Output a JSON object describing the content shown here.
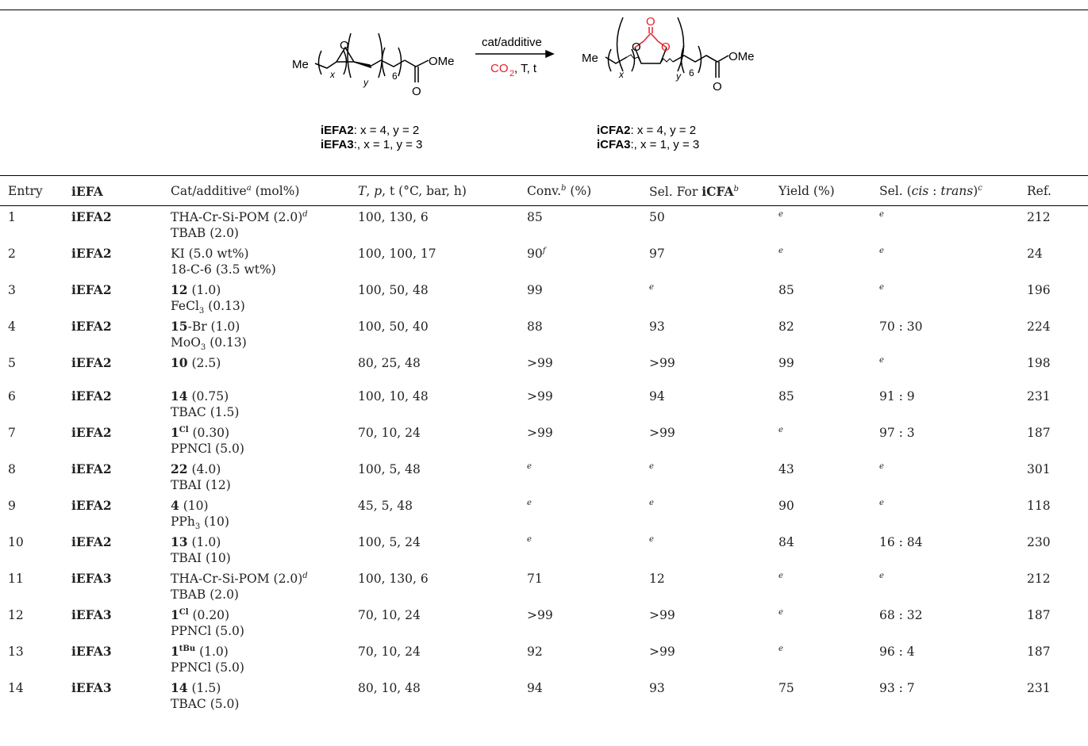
{
  "scheme": {
    "reactant": {
      "me": "Me",
      "ome": "OMe",
      "o_epox": "O",
      "o_carbonyl": "O",
      "sub_x": "x",
      "sub_y": "y",
      "sub_6": "6"
    },
    "product": {
      "me": "Me",
      "ome": "OMe",
      "o_ring1": "O",
      "o_ring2": "O",
      "o_top": "O",
      "o_carbonyl": "O",
      "sub_x": "x",
      "sub_y": "y",
      "sub_6": "6"
    },
    "arrow_top": "cat/additive",
    "arrow_bottom_co2": "CO",
    "arrow_bottom_sub": "2",
    "arrow_bottom_rest": ", T, t",
    "reactant_labels": [
      {
        "name": "iEFA2",
        "text": ": x = 4, y = 2"
      },
      {
        "name": "iEFA3",
        "text": ":, x = 1, y = 3"
      }
    ],
    "product_labels": [
      {
        "name": "iCFA2",
        "text": ": x = 4, y = 2"
      },
      {
        "name": "iCFA3",
        "text": ":, x = 1, y = 3"
      }
    ],
    "accent_color": "#e8202a"
  },
  "table": {
    "headers": {
      "entry": "Entry",
      "iefa": "iEFA",
      "cat": "Cat/additive",
      "cat_sup": "a",
      "cat_unit": " (mol%)",
      "cond_T": "T",
      "cond_p": "p",
      "cond_rest": ", t (°C, bar, h)",
      "conv": "Conv.",
      "conv_sup": "b",
      "conv_unit": " (%)",
      "sel": "Sel. For ",
      "sel_bold": "iCFA",
      "sel_sup": "b",
      "yield": "Yield (%)",
      "selct": "Sel. (",
      "selct_cis": "cis",
      "selct_colon": " : ",
      "selct_trans": "trans",
      "selct_close": ")",
      "selct_sup": "c",
      "ref": "Ref."
    },
    "rows": [
      {
        "entry": "1",
        "iefa": "iEFA2",
        "cat1_bold": "",
        "cat1": "THA-Cr-Si-POM (2.0)",
        "cat1_sup": "d",
        "cat2": "TBAB (2.0)",
        "cond": "100, 130, 6",
        "conv": "85",
        "conv_sup": "",
        "sel": "50",
        "sel_sup": "",
        "yield": "",
        "yield_sup": "e",
        "ct": "",
        "ct_sup": "e",
        "ref": "212"
      },
      {
        "entry": "2",
        "iefa": "iEFA2",
        "cat1_bold": "",
        "cat1": "KI (5.0 wt%)",
        "cat1_sup": "",
        "cat2": "18-C-6 (3.5 wt%)",
        "cond": "100, 100, 17",
        "conv": "90",
        "conv_sup": "f",
        "sel": "97",
        "sel_sup": "",
        "yield": "",
        "yield_sup": "e",
        "ct": "",
        "ct_sup": "e",
        "ref": "24"
      },
      {
        "entry": "3",
        "iefa": "iEFA2",
        "cat1_bold": "12",
        "cat1": " (1.0)",
        "cat1_sup": "",
        "cat2": "FeCl",
        "cat2_sub": "3",
        "cat2_tail": " (0.13)",
        "cond": "100, 50, 48",
        "conv": "99",
        "conv_sup": "",
        "sel": "",
        "sel_sup": "e",
        "yield": "85",
        "yield_sup": "",
        "ct": "",
        "ct_sup": "e",
        "ref": "196"
      },
      {
        "entry": "4",
        "iefa": "iEFA2",
        "cat1_bold": "15",
        "cat1": "-Br (1.0)",
        "cat1_sup": "",
        "cat2": "MoO",
        "cat2_sub": "3",
        "cat2_tail": " (0.13)",
        "cond": "100, 50, 40",
        "conv": "88",
        "conv_sup": "",
        "sel": "93",
        "sel_sup": "",
        "yield": "82",
        "yield_sup": "",
        "ct": "70 : 30",
        "ct_sup": "",
        "ref": "224"
      },
      {
        "entry": "5",
        "iefa": "iEFA2",
        "cat1_bold": "10",
        "cat1": " (2.5)",
        "cat1_sup": "",
        "cat2": "",
        "cond": "80, 25, 48",
        "conv": ">99",
        "conv_sup": "",
        "sel": ">99",
        "sel_sup": "",
        "yield": "99",
        "yield_sup": "",
        "ct": "",
        "ct_sup": "e",
        "ref": "198"
      },
      {
        "entry": "6",
        "iefa": "iEFA2",
        "cat1_bold": "14",
        "cat1": " (0.75)",
        "cat1_sup": "",
        "cat2": "TBAC (1.5)",
        "cond": "100, 10, 48",
        "conv": ">99",
        "conv_sup": "",
        "sel": "94",
        "sel_sup": "",
        "yield": "85",
        "yield_sup": "",
        "ct": "91 : 9",
        "ct_sup": "",
        "ref": "231"
      },
      {
        "entry": "7",
        "iefa": "iEFA2",
        "cat1_bold": "1",
        "cat1_boldsup": "Cl",
        "cat1": " (0.30)",
        "cat1_sup": "",
        "cat2": "PPNCl (5.0)",
        "cond": "70, 10, 24",
        "conv": ">99",
        "conv_sup": "",
        "sel": ">99",
        "sel_sup": "",
        "yield": "",
        "yield_sup": "e",
        "ct": "97 : 3",
        "ct_sup": "",
        "ref": "187"
      },
      {
        "entry": "8",
        "iefa": "iEFA2",
        "cat1_bold": "22",
        "cat1": " (4.0)",
        "cat1_sup": "",
        "cat2": "TBAI (12)",
        "cond": "100, 5, 48",
        "conv": "",
        "conv_sup": "e",
        "sel": "",
        "sel_sup": "e",
        "yield": "43",
        "yield_sup": "",
        "ct": "",
        "ct_sup": "e",
        "ref": "301"
      },
      {
        "entry": "9",
        "iefa": "iEFA2",
        "cat1_bold": "4",
        "cat1": " (10)",
        "cat1_sup": "",
        "cat2": "PPh",
        "cat2_sub": "3",
        "cat2_tail": " (10)",
        "cond": "45, 5, 48",
        "conv": "",
        "conv_sup": "e",
        "sel": "",
        "sel_sup": "e",
        "yield": "90",
        "yield_sup": "",
        "ct": "",
        "ct_sup": "e",
        "ref": "118"
      },
      {
        "entry": "10",
        "iefa": "iEFA2",
        "cat1_bold": "13",
        "cat1": " (1.0)",
        "cat1_sup": "",
        "cat2": "TBAI (10)",
        "cond": "100, 5, 24",
        "conv": "",
        "conv_sup": "e",
        "sel": "",
        "sel_sup": "e",
        "yield": "84",
        "yield_sup": "",
        "ct": "16 : 84",
        "ct_sup": "",
        "ref": "230"
      },
      {
        "entry": "11",
        "iefa": "iEFA3",
        "cat1_bold": "",
        "cat1": "THA-Cr-Si-POM (2.0)",
        "cat1_sup": "d",
        "cat2": "TBAB (2.0)",
        "cond": "100, 130, 6",
        "conv": "71",
        "conv_sup": "",
        "sel": "12",
        "sel_sup": "",
        "yield": "",
        "yield_sup": "e",
        "ct": "",
        "ct_sup": "e",
        "ref": "212"
      },
      {
        "entry": "12",
        "iefa": "iEFA3",
        "cat1_bold": "1",
        "cat1_boldsup": "Cl",
        "cat1": " (0.20)",
        "cat1_sup": "",
        "cat2": "PPNCl (5.0)",
        "cond": "70, 10, 24",
        "conv": ">99",
        "conv_sup": "",
        "sel": ">99",
        "sel_sup": "",
        "yield": "",
        "yield_sup": "e",
        "ct": "68 : 32",
        "ct_sup": "",
        "ref": "187"
      },
      {
        "entry": "13",
        "iefa": "iEFA3",
        "cat1_bold": "1",
        "cat1_boldsup": "tBu",
        "cat1": " (1.0)",
        "cat1_sup": "",
        "cat2": "PPNCl (5.0)",
        "cond": "70, 10, 24",
        "conv": "92",
        "conv_sup": "",
        "sel": ">99",
        "sel_sup": "",
        "yield": "",
        "yield_sup": "e",
        "ct": "96 : 4",
        "ct_sup": "",
        "ref": "187"
      },
      {
        "entry": "14",
        "iefa": "iEFA3",
        "cat1_bold": "14",
        "cat1": " (1.5)",
        "cat1_sup": "",
        "cat2": "TBAC (5.0)",
        "cond": "80, 10, 48",
        "conv": "94",
        "conv_sup": "",
        "sel": "93",
        "sel_sup": "",
        "yield": "75",
        "yield_sup": "",
        "ct": "93 : 7",
        "ct_sup": "",
        "ref": "231"
      }
    ]
  }
}
